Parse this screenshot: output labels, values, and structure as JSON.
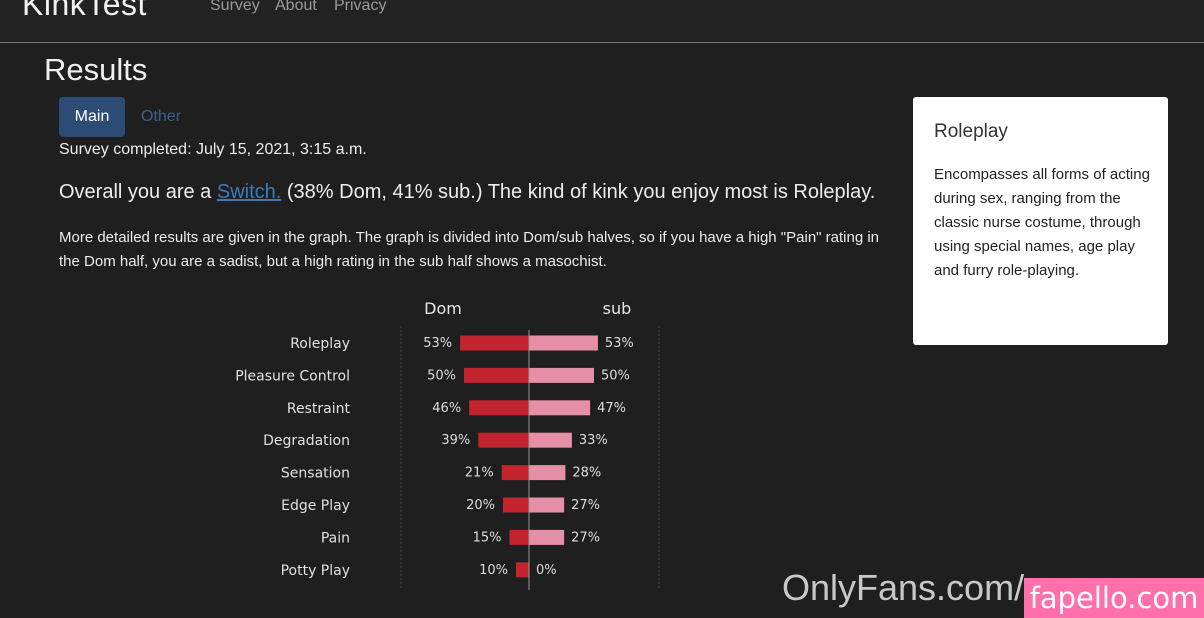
{
  "navbar": {
    "brand": "KinkTest",
    "links": [
      "Survey",
      "About",
      "Privacy"
    ]
  },
  "page_title": "Results",
  "tabs": [
    {
      "label": "Main",
      "active": true
    },
    {
      "label": "Other",
      "active": false
    }
  ],
  "survey_completed": "Survey completed: July 15, 2021, 3:15 a.m.",
  "overall": {
    "prefix": "Overall you are a ",
    "link": "Switch.",
    "suffix": " (38% Dom, 41% sub.) The kind of kink you enjoy most is Roleplay."
  },
  "details_text": "More detailed results are given in the graph. The graph is divided into Dom/sub halves, so if you have a high \"Pain\" rating in the Dom half, you are a sadist, but a high rating in the sub half shows a masochist.",
  "card": {
    "title": "Roleplay",
    "body": "Encompasses all forms of acting during sex, ranging from the classic nurse costume, through using special names, age play and furry role-playing."
  },
  "chart_data": {
    "type": "bar",
    "orientation": "horizontal-diverging",
    "column_labels": {
      "left": "Dom",
      "right": "sub"
    },
    "categories": [
      "Roleplay",
      "Pleasure Control",
      "Restraint",
      "Degradation",
      "Sensation",
      "Edge Play",
      "Pain",
      "Potty Play"
    ],
    "series": [
      {
        "name": "Dom",
        "values": [
          53,
          50,
          46,
          39,
          21,
          20,
          15,
          10
        ],
        "color": "#c4242f"
      },
      {
        "name": "sub",
        "values": [
          53,
          50,
          47,
          33,
          28,
          27,
          27,
          0
        ],
        "color": "#e58fa9"
      }
    ],
    "unit": "%",
    "grid": true
  },
  "watermark": {
    "text": "OnlyFans.com/",
    "badge": "fapello.com"
  }
}
